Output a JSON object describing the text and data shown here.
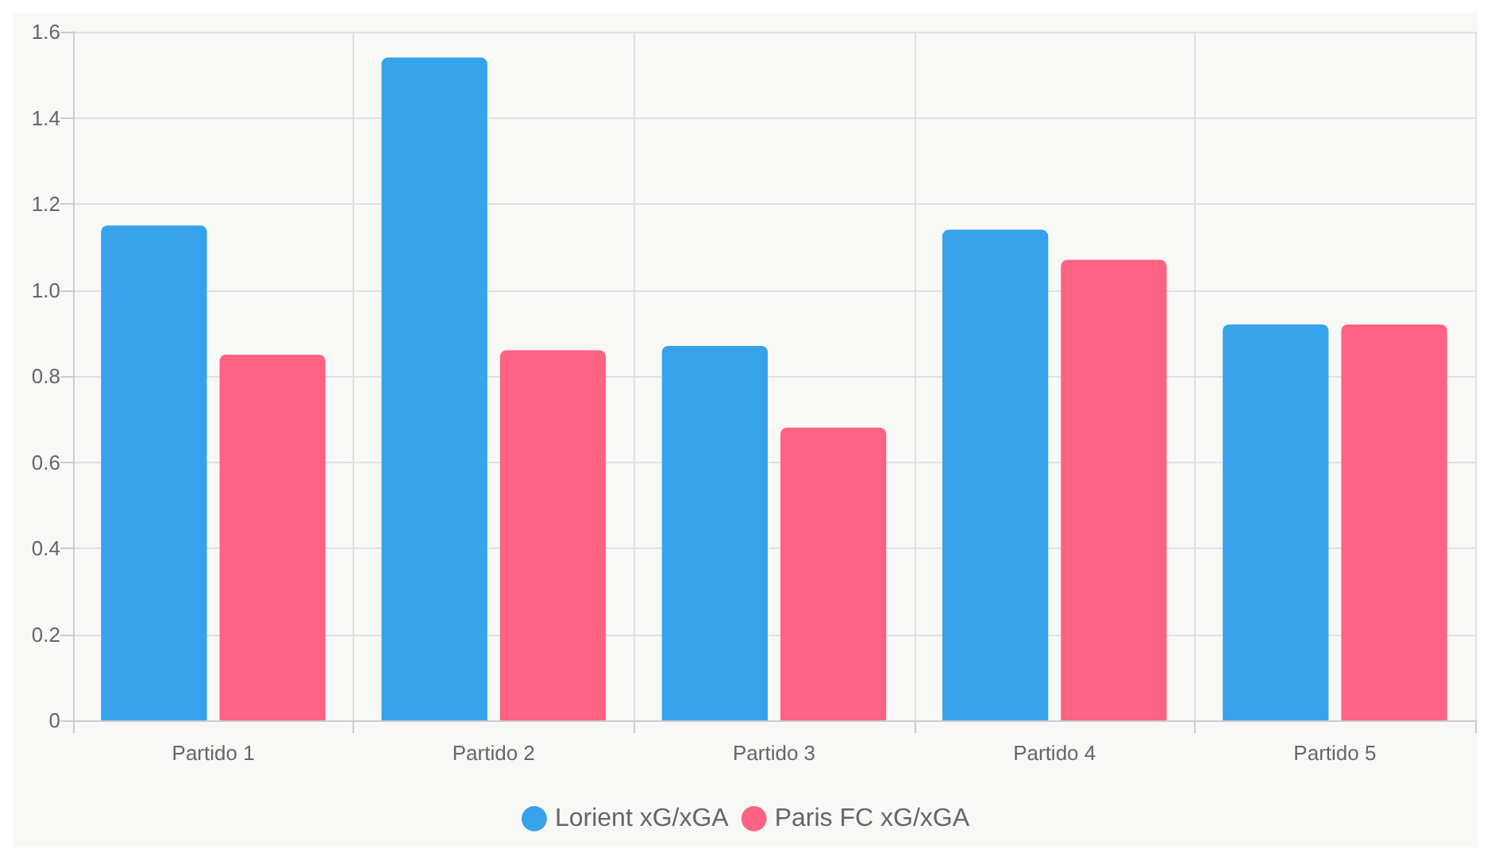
{
  "chart_data": {
    "type": "bar",
    "categories": [
      "Partido 1",
      "Partido 2",
      "Partido 3",
      "Partido 4",
      "Partido 5"
    ],
    "series": [
      {
        "name": "Lorient xG/xGA",
        "color": "#36a2eb",
        "values": [
          1.15,
          1.54,
          0.87,
          1.14,
          0.92
        ]
      },
      {
        "name": "Paris FC xG/xGA",
        "color": "#ff6384",
        "values": [
          0.85,
          0.86,
          0.68,
          1.07,
          0.92
        ]
      }
    ],
    "ylim": [
      0,
      1.6
    ],
    "yticks": [
      0,
      0.2,
      0.4,
      0.6,
      0.8,
      {
        "value": 1,
        "label": "1.0"
      },
      1.2,
      1.4,
      1.6
    ],
    "grid": true,
    "legend": "bottom"
  }
}
